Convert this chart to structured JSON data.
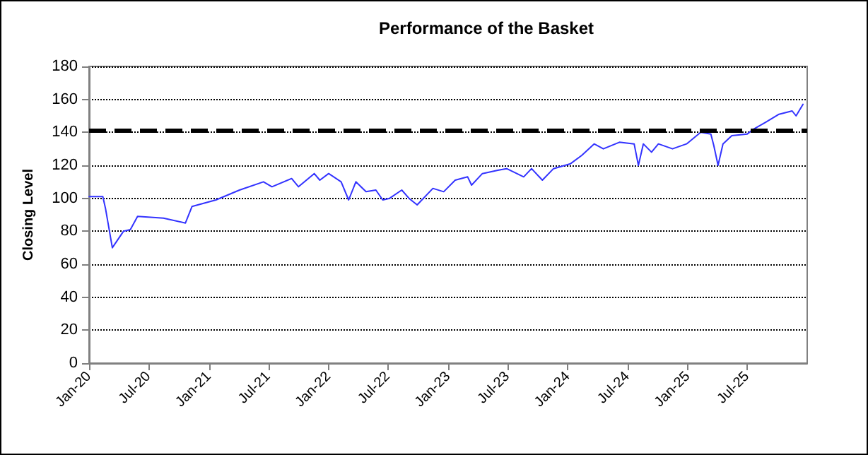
{
  "chart_data": {
    "type": "line",
    "title": "Performance of the Basket",
    "ylabel": "Closing Level",
    "x": [
      "2020-01-01",
      "2020-02-12",
      "2020-02-20",
      "2020-03-12",
      "2020-04-15",
      "2020-05-06",
      "2020-05-28",
      "2020-08-15",
      "2020-10-21",
      "2020-11-10",
      "2021-01-22",
      "2021-04-04",
      "2021-06-16",
      "2021-07-12",
      "2021-09-10",
      "2021-10-01",
      "2021-11-18",
      "2021-12-05",
      "2022-01-01",
      "2022-02-08",
      "2022-03-03",
      "2022-03-25",
      "2022-04-25",
      "2022-05-25",
      "2022-06-15",
      "2022-07-06",
      "2022-08-12",
      "2022-09-03",
      "2022-09-28",
      "2022-11-15",
      "2022-12-18",
      "2023-01-22",
      "2023-03-01",
      "2023-03-13",
      "2023-04-15",
      "2023-06-01",
      "2023-06-28",
      "2023-08-19",
      "2023-09-12",
      "2023-10-15",
      "2023-11-18",
      "2024-01-09",
      "2024-02-12",
      "2024-03-21",
      "2024-04-18",
      "2024-06-06",
      "2024-07-21",
      "2024-08-03",
      "2024-08-18",
      "2024-09-12",
      "2024-10-03",
      "2024-11-15",
      "2024-12-28",
      "2025-02-09",
      "2025-03-12",
      "2025-03-21",
      "2025-04-03",
      "2025-04-18",
      "2025-05-15",
      "2025-07-01",
      "2025-07-21",
      "2025-08-25",
      "2025-10-06",
      "2025-11-15",
      "2025-11-27",
      "2025-12-18"
    ],
    "series": [
      {
        "color": "#3333ff",
        "values": [
          101,
          101,
          94,
          70,
          80,
          81,
          89,
          88,
          85,
          95,
          99,
          105,
          110,
          107,
          112,
          107,
          115,
          111,
          115,
          110,
          99,
          110,
          104,
          105,
          99,
          100,
          105,
          100,
          96,
          106,
          104,
          111,
          113,
          108,
          115,
          117,
          118,
          113,
          118,
          111,
          118,
          121,
          126,
          133,
          130,
          134,
          133,
          120,
          133,
          128,
          133,
          130,
          133,
          140,
          139,
          132,
          120,
          133,
          138,
          139,
          142,
          146,
          151,
          153,
          150,
          157
        ]
      }
    ],
    "xlim": [
      "2020-01-01",
      "2025-12-31"
    ],
    "xticks": [
      {
        "value": "2020-01-01",
        "label": "Jan-20"
      },
      {
        "value": "2020-07-01",
        "label": "Jul-20"
      },
      {
        "value": "2021-01-01",
        "label": "Jan-21"
      },
      {
        "value": "2021-07-01",
        "label": "Jul-21"
      },
      {
        "value": "2022-01-01",
        "label": "Jan-22"
      },
      {
        "value": "2022-07-01",
        "label": "Jul-22"
      },
      {
        "value": "2023-01-01",
        "label": "Jan-23"
      },
      {
        "value": "2023-07-01",
        "label": "Jul-23"
      },
      {
        "value": "2024-01-01",
        "label": "Jan-24"
      },
      {
        "value": "2024-07-01",
        "label": "Jul-24"
      },
      {
        "value": "2025-01-01",
        "label": "Jan-25"
      },
      {
        "value": "2025-07-01",
        "label": "Jul-25"
      }
    ],
    "ylim": [
      0,
      180
    ],
    "yticks": [
      0,
      20,
      40,
      60,
      80,
      100,
      120,
      140,
      160,
      180
    ],
    "ref_lines": [
      {
        "axis": "y",
        "value": 141,
        "color": "#000000",
        "line_style": "dashed"
      }
    ],
    "grid": "y",
    "marker": "none",
    "line_style": "solid"
  }
}
